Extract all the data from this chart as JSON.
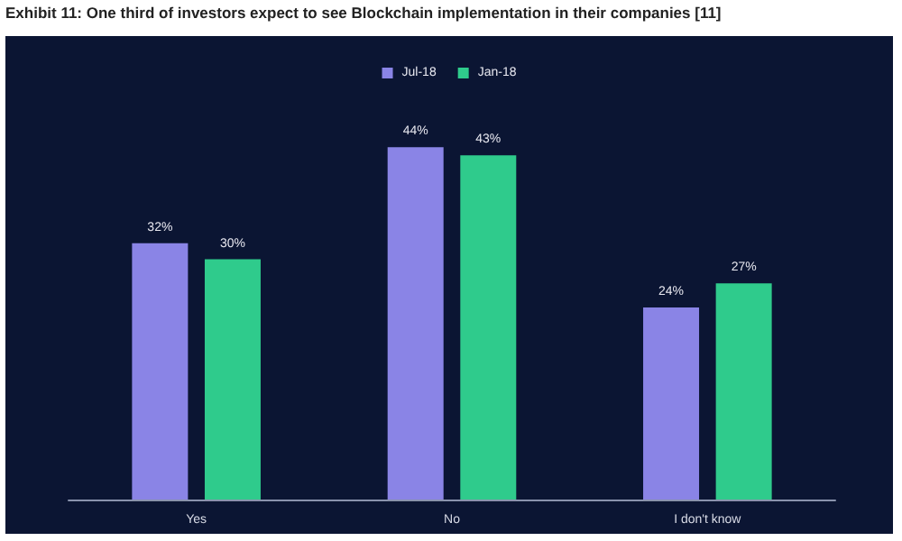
{
  "chart_data": {
    "type": "bar",
    "title": "Exhibit 11: One third of investors expect to see Blockchain implementation in their companies [11]",
    "categories": [
      "Yes",
      "No",
      "I don't know"
    ],
    "series": [
      {
        "name": "Jul-18",
        "color": "#8a84e6",
        "values": [
          32,
          44,
          24
        ],
        "value_labels": [
          "32%",
          "44%",
          "24%"
        ]
      },
      {
        "name": "Jan-18",
        "color": "#2fcb8c",
        "values": [
          30,
          43,
          27
        ],
        "value_labels": [
          "30%",
          "43%",
          "27%"
        ]
      }
    ],
    "legend": "top"
  }
}
